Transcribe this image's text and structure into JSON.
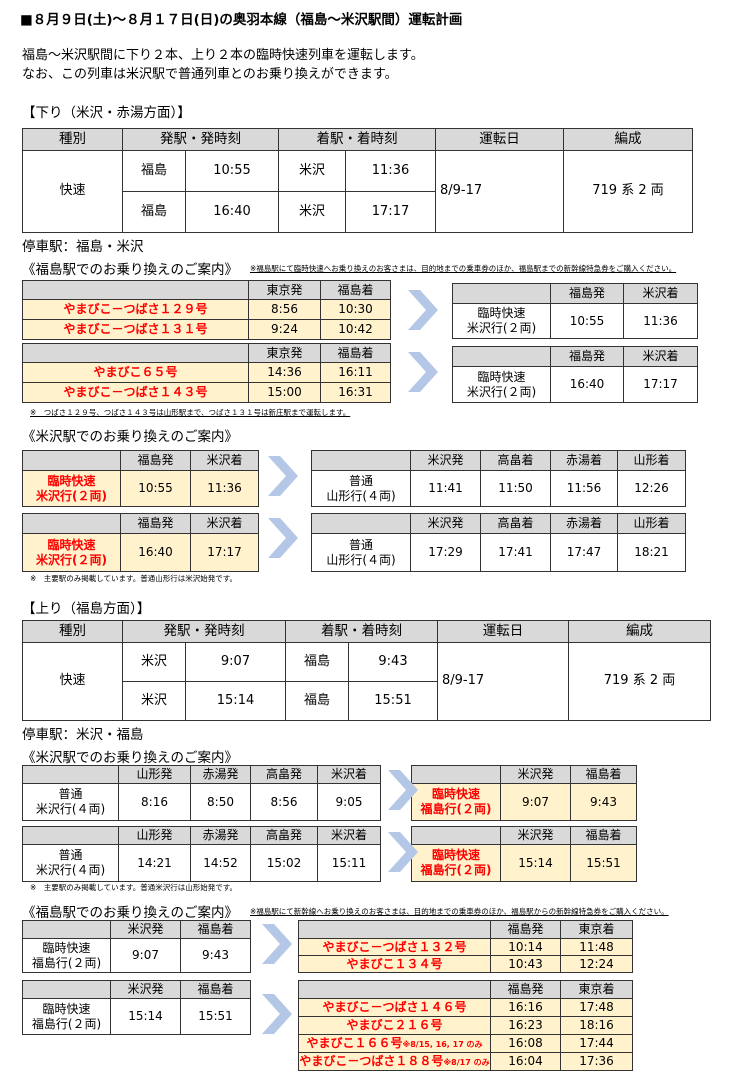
{
  "title": "■８月９日(土)～８月１７日(日)の奥羽本線（福島～米沢駅間）運転計画",
  "intro": [
    "福島～米沢駅間に下り２本、上り２本の臨時快速列車を運転します。",
    "なお、この列車は米沢駅で普通列車とのお乗り換えができます。"
  ],
  "colors": {
    "header_gray": "#d9d9d9",
    "highlight_yellow": "#fff2cc",
    "train_red": "#ff0000",
    "arrow_blue": "#b4c7e7"
  },
  "down": {
    "heading": "【下り（米沢・赤湯方面）】",
    "table": {
      "headers": [
        "種別",
        "発駅・発時刻",
        "着駅・着時刻",
        "運転日",
        "編成"
      ],
      "type": "快速",
      "rows": [
        [
          "福島",
          "10:55",
          "米沢",
          "11:36"
        ],
        [
          "福島",
          "16:40",
          "米沢",
          "17:17"
        ]
      ],
      "dates": "8/9-17",
      "formation": "719 系  2 両"
    },
    "stops": "停車駅：福島・米沢",
    "transfer_fukushima": {
      "heading": "《福島駅でのお乗り換えのご案内》",
      "note": "※福島駅にて臨時快速へお乗り換えのお客さまは、目的地までの乗車券のほか、福島駅までの新幹線特急券をご購入ください。"
    },
    "footnote_1": "※　つばさ１２９号、つばさ１４３号は山形駅まで、つばさ１３１号は新庄駅まで運転します。",
    "transfer_yonezawa": {
      "heading": "《米沢駅でのお乗り換えのご案内》"
    },
    "footnote_2": "※　主要駅のみ掲載しています。普通山形行は米沢始発です。"
  },
  "up": {
    "heading": "【上り（福島方面）】",
    "table": {
      "headers": [
        "種別",
        "発駅・発時刻",
        "着駅・着時刻",
        "運転日",
        "編成"
      ],
      "type": "快速",
      "rows": [
        [
          "米沢",
          "9:07",
          "福島",
          "9:43"
        ],
        [
          "米沢",
          "15:14",
          "福島",
          "15:51"
        ]
      ],
      "dates": "8/9-17",
      "formation": "719 系  2 両"
    },
    "stops": "停車駅：米沢・福島",
    "transfer_yonezawa": {
      "heading": "《米沢駅でのお乗り換えのご案内》"
    },
    "footnote_1": "※　主要駅のみ掲載しています。普通米沢行は山形始発です。",
    "transfer_fukushima": {
      "heading": "《福島駅でのお乗り換えのご案内》",
      "note": "※福島駅にて新幹線へお乗り換えのお客さまは、目的地までの乗車券のほか、福島駅からの新幹線特急券をご購入ください。"
    }
  },
  "transfer_tables": [
    {
      "headers": [
        "",
        "東京発",
        "福島着"
      ],
      "style": "shinkansen",
      "rows": [
        {
          "cells": [
            "やまびこ－つばさ１２９号",
            "8:56",
            "10:30"
          ]
        },
        {
          "cells": [
            "やまびこ－つばさ１３１号",
            "9:24",
            "10:42"
          ]
        }
      ]
    },
    {
      "headers": [
        "",
        "福島発",
        "米沢着"
      ],
      "style": "plain",
      "rows": [
        {
          "cells": [
            "臨時快速\n米沢行(２両)",
            "10:55",
            "11:36"
          ]
        }
      ]
    },
    {
      "headers": [
        "",
        "東京発",
        "福島着"
      ],
      "style": "shinkansen",
      "rows": [
        {
          "cells": [
            "やまびこ６５号",
            "14:36",
            "16:11"
          ]
        },
        {
          "cells": [
            "やまびこ－つばさ１４３号",
            "15:00",
            "16:31"
          ]
        }
      ]
    },
    {
      "headers": [
        "",
        "福島発",
        "米沢着"
      ],
      "style": "plain",
      "rows": [
        {
          "cells": [
            "臨時快速\n米沢行(２両)",
            "16:40",
            "17:17"
          ]
        }
      ]
    },
    {
      "headers": [
        "",
        "福島発",
        "米沢着"
      ],
      "style": "rapid",
      "rows": [
        {
          "cells": [
            "臨時快速\n米沢行(２両)",
            "10:55",
            "11:36"
          ]
        }
      ]
    },
    {
      "headers": [
        "",
        "米沢発",
        "高畠着",
        "赤湯着",
        "山形着"
      ],
      "style": "plain",
      "rows": [
        {
          "cells": [
            "普通\n山形行(４両)",
            "11:41",
            "11:50",
            "11:56",
            "12:26"
          ]
        }
      ]
    },
    {
      "headers": [
        "",
        "福島発",
        "米沢着"
      ],
      "style": "rapid",
      "rows": [
        {
          "cells": [
            "臨時快速\n米沢行(２両)",
            "16:40",
            "17:17"
          ]
        }
      ]
    },
    {
      "headers": [
        "",
        "米沢発",
        "高畠着",
        "赤湯着",
        "山形着"
      ],
      "style": "plain",
      "rows": [
        {
          "cells": [
            "普通\n山形行(４両)",
            "17:29",
            "17:41",
            "17:47",
            "18:21"
          ]
        }
      ]
    },
    {
      "headers": [
        "",
        "山形発",
        "赤湯発",
        "高畠発",
        "米沢着"
      ],
      "style": "plain",
      "rows": [
        {
          "cells": [
            "普通\n米沢行(４両)",
            "8:16",
            "8:50",
            "8:56",
            "9:05"
          ]
        }
      ]
    },
    {
      "headers": [
        "",
        "米沢発",
        "福島着"
      ],
      "style": "rapid",
      "rows": [
        {
          "cells": [
            "臨時快速\n福島行(２両)",
            "9:07",
            "9:43"
          ]
        }
      ]
    },
    {
      "headers": [
        "",
        "山形発",
        "赤湯発",
        "高畠発",
        "米沢着"
      ],
      "style": "plain",
      "rows": [
        {
          "cells": [
            "普通\n米沢行(４両)",
            "14:21",
            "14:52",
            "15:02",
            "15:11"
          ]
        }
      ]
    },
    {
      "headers": [
        "",
        "米沢発",
        "福島着"
      ],
      "style": "rapid",
      "rows": [
        {
          "cells": [
            "臨時快速\n福島行(２両)",
            "15:14",
            "15:51"
          ]
        }
      ]
    },
    {
      "headers": [
        "",
        "米沢発",
        "福島着"
      ],
      "style": "plain",
      "rows": [
        {
          "cells": [
            "臨時快速\n福島行(２両)",
            "9:07",
            "9:43"
          ]
        }
      ]
    },
    {
      "headers": [
        "",
        "福島発",
        "東京着"
      ],
      "style": "shinkansen",
      "rows": [
        {
          "cells": [
            "やまびこ－つばさ１３２号",
            "10:14",
            "11:48"
          ]
        },
        {
          "cells": [
            "やまびこ１３４号",
            "10:43",
            "12:24"
          ]
        }
      ]
    },
    {
      "headers": [
        "",
        "米沢発",
        "福島着"
      ],
      "style": "plain",
      "rows": [
        {
          "cells": [
            "臨時快速\n福島行(２両)",
            "15:14",
            "15:51"
          ]
        }
      ]
    },
    {
      "headers": [
        "",
        "福島発",
        "東京着"
      ],
      "style": "shinkansen",
      "rows": [
        {
          "cells": [
            "やまびこ－つばさ１４６号",
            "16:16",
            "17:48"
          ]
        },
        {
          "cells": [
            "やまびこ２１６号",
            "16:23",
            "18:16"
          ]
        },
        {
          "cells": [
            "やまびこ１６６号",
            "16:08",
            "17:44"
          ],
          "note": "※8/15, 16, 17 のみ"
        },
        {
          "cells": [
            "やまびこ－つばさ１８８号",
            "16:04",
            "17:36"
          ],
          "note": "※8/17 のみ"
        }
      ]
    }
  ]
}
